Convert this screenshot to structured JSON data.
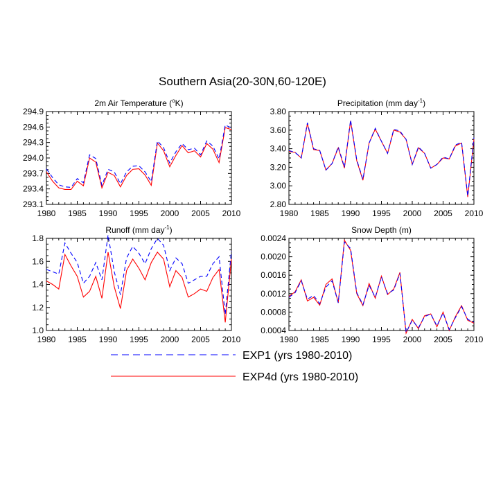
{
  "figure": {
    "title": "Southern Asia(20-30N,60-120E)"
  },
  "legend": [
    {
      "label": "EXP1 (yrs 1980-2010)",
      "color": "#0000ff",
      "dash": true
    },
    {
      "label": "EXP4d (yrs 1980-2010)",
      "color": "#ff0000",
      "dash": false
    }
  ],
  "chart_data": [
    {
      "type": "line",
      "title_main": "2m Air Temperature (",
      "title_sup": "o",
      "title_tail": "K)",
      "x": [
        1980,
        1981,
        1982,
        1983,
        1984,
        1985,
        1986,
        1987,
        1988,
        1989,
        1990,
        1991,
        1992,
        1993,
        1994,
        1995,
        1996,
        1997,
        1998,
        1999,
        2000,
        2001,
        2002,
        2003,
        2004,
        2005,
        2006,
        2007,
        2008,
        2009,
        2010
      ],
      "xlim": [
        1980,
        2010
      ],
      "xticks": [
        1980,
        1985,
        1990,
        1995,
        2000,
        2005,
        2010
      ],
      "ylim": [
        293.1,
        294.9
      ],
      "yticks": [
        293.1,
        293.4,
        293.7,
        294.0,
        294.3,
        294.6,
        294.9
      ],
      "ytick_labels": [
        "293.1",
        "293.4",
        "293.7",
        "294.0",
        "294.3",
        "294.6",
        "294.9"
      ],
      "series": [
        {
          "name": "EXP1",
          "values": [
            293.79,
            293.62,
            293.48,
            293.44,
            293.43,
            293.6,
            293.52,
            294.06,
            293.99,
            293.47,
            293.78,
            293.73,
            293.5,
            293.73,
            293.84,
            293.85,
            293.73,
            293.54,
            294.33,
            294.2,
            293.9,
            294.12,
            294.28,
            294.16,
            294.19,
            294.06,
            294.33,
            294.23,
            293.98,
            294.64,
            294.58
          ]
        },
        {
          "name": "EXP4d",
          "values": [
            293.73,
            293.55,
            293.42,
            293.39,
            293.39,
            293.55,
            293.46,
            294.0,
            293.92,
            293.42,
            293.72,
            293.66,
            293.44,
            293.66,
            293.78,
            293.79,
            293.67,
            293.47,
            294.29,
            294.14,
            293.83,
            294.05,
            294.24,
            294.1,
            294.14,
            294.02,
            294.28,
            294.17,
            293.91,
            294.59,
            294.55
          ]
        }
      ]
    },
    {
      "type": "line",
      "title_main": "Precipitation (mm day",
      "title_sup": "-1",
      "title_tail": ")",
      "x": [
        1980,
        1981,
        1982,
        1983,
        1984,
        1985,
        1986,
        1987,
        1988,
        1989,
        1990,
        1991,
        1992,
        1993,
        1994,
        1995,
        1996,
        1997,
        1998,
        1999,
        2000,
        2001,
        2002,
        2003,
        2004,
        2005,
        2006,
        2007,
        2008,
        2009,
        2010
      ],
      "xlim": [
        1980,
        2010
      ],
      "xticks": [
        1980,
        1985,
        1990,
        1995,
        2000,
        2005,
        2010
      ],
      "ylim": [
        2.8,
        3.8
      ],
      "yticks": [
        2.8,
        3.0,
        3.2,
        3.4,
        3.6,
        3.8
      ],
      "ytick_labels": [
        "2.80",
        "3.00",
        "3.20",
        "3.40",
        "3.60",
        "3.80"
      ],
      "series": [
        {
          "name": "EXP1",
          "values": [
            3.38,
            3.36,
            3.3,
            3.68,
            3.4,
            3.38,
            3.17,
            3.24,
            3.42,
            3.2,
            3.71,
            3.28,
            3.07,
            3.46,
            3.62,
            3.48,
            3.35,
            3.61,
            3.59,
            3.5,
            3.23,
            3.42,
            3.35,
            3.19,
            3.23,
            3.31,
            3.29,
            3.44,
            3.47,
            2.89,
            3.52
          ]
        },
        {
          "name": "EXP4d",
          "values": [
            3.37,
            3.36,
            3.3,
            3.67,
            3.39,
            3.38,
            3.17,
            3.24,
            3.41,
            3.19,
            3.7,
            3.27,
            3.06,
            3.46,
            3.61,
            3.48,
            3.35,
            3.6,
            3.58,
            3.5,
            3.23,
            3.41,
            3.35,
            3.19,
            3.23,
            3.3,
            3.29,
            3.43,
            3.46,
            2.88,
            3.5
          ]
        }
      ]
    },
    {
      "type": "line",
      "title_main": "Runoff (mm day",
      "title_sup": "-1",
      "title_tail": ")",
      "x": [
        1980,
        1981,
        1982,
        1983,
        1984,
        1985,
        1986,
        1987,
        1988,
        1989,
        1990,
        1991,
        1992,
        1993,
        1994,
        1995,
        1996,
        1997,
        1998,
        1999,
        2000,
        2001,
        2002,
        2003,
        2004,
        2005,
        2006,
        2007,
        2008,
        2009,
        2010
      ],
      "xlim": [
        1980,
        2010
      ],
      "xticks": [
        1980,
        1985,
        1990,
        1995,
        2000,
        2005,
        2010
      ],
      "ylim": [
        1.0,
        1.8
      ],
      "yticks": [
        1.0,
        1.2,
        1.4,
        1.6,
        1.8
      ],
      "ytick_labels": [
        "1.0",
        "1.2",
        "1.4",
        "1.6",
        "1.8"
      ],
      "series": [
        {
          "name": "EXP1",
          "values": [
            1.53,
            1.51,
            1.49,
            1.76,
            1.67,
            1.59,
            1.41,
            1.47,
            1.59,
            1.44,
            1.83,
            1.51,
            1.31,
            1.63,
            1.73,
            1.67,
            1.58,
            1.71,
            1.8,
            1.74,
            1.52,
            1.63,
            1.58,
            1.41,
            1.44,
            1.47,
            1.47,
            1.58,
            1.64,
            1.14,
            1.69
          ]
        },
        {
          "name": "EXP4d",
          "values": [
            1.43,
            1.4,
            1.36,
            1.66,
            1.56,
            1.47,
            1.29,
            1.34,
            1.47,
            1.28,
            1.68,
            1.38,
            1.19,
            1.52,
            1.62,
            1.54,
            1.44,
            1.59,
            1.68,
            1.62,
            1.38,
            1.52,
            1.46,
            1.29,
            1.32,
            1.36,
            1.34,
            1.46,
            1.53,
            1.07,
            1.62
          ]
        }
      ]
    },
    {
      "type": "line",
      "title_main": "Snow Depth (m)",
      "title_sup": "",
      "title_tail": "",
      "x": [
        1980,
        1981,
        1982,
        1983,
        1984,
        1985,
        1986,
        1987,
        1988,
        1989,
        1990,
        1991,
        1992,
        1993,
        1994,
        1995,
        1996,
        1997,
        1998,
        1999,
        2000,
        2001,
        2002,
        2003,
        2004,
        2005,
        2006,
        2007,
        2008,
        2009,
        2010
      ],
      "xlim": [
        1980,
        2010
      ],
      "xticks": [
        1980,
        1985,
        1990,
        1995,
        2000,
        2005,
        2010
      ],
      "ylim": [
        0.0004,
        0.0024
      ],
      "yticks": [
        0.0004,
        0.0008,
        0.0012,
        0.0016,
        0.002,
        0.0024
      ],
      "ytick_labels": [
        "0.0004",
        "0.0008",
        "0.0012",
        "0.0016",
        "0.0020",
        "0.0024"
      ],
      "series": [
        {
          "name": "EXP1",
          "values": [
            0.00112,
            0.00122,
            0.00148,
            0.00108,
            0.00116,
            0.00098,
            0.00134,
            0.00148,
            0.001,
            0.00232,
            0.00218,
            0.00122,
            0.00096,
            0.00138,
            0.00112,
            0.00156,
            0.0012,
            0.00128,
            0.00164,
            0.00036,
            0.00062,
            0.00046,
            0.0007,
            0.00076,
            0.0005,
            0.00078,
            0.00042,
            0.00068,
            0.00092,
            0.00064,
            0.00058
          ]
        },
        {
          "name": "EXP4d",
          "values": [
            0.00114,
            0.00124,
            0.0015,
            0.00104,
            0.00112,
            0.00095,
            0.0014,
            0.00152,
            0.001,
            0.00236,
            0.00214,
            0.0012,
            0.00094,
            0.00142,
            0.0011,
            0.00158,
            0.00118,
            0.0013,
            0.00166,
            0.00034,
            0.00064,
            0.00044,
            0.00072,
            0.00076,
            0.00048,
            0.0008,
            0.0004,
            0.0007,
            0.00094,
            0.00062,
            0.00056
          ]
        }
      ]
    }
  ]
}
